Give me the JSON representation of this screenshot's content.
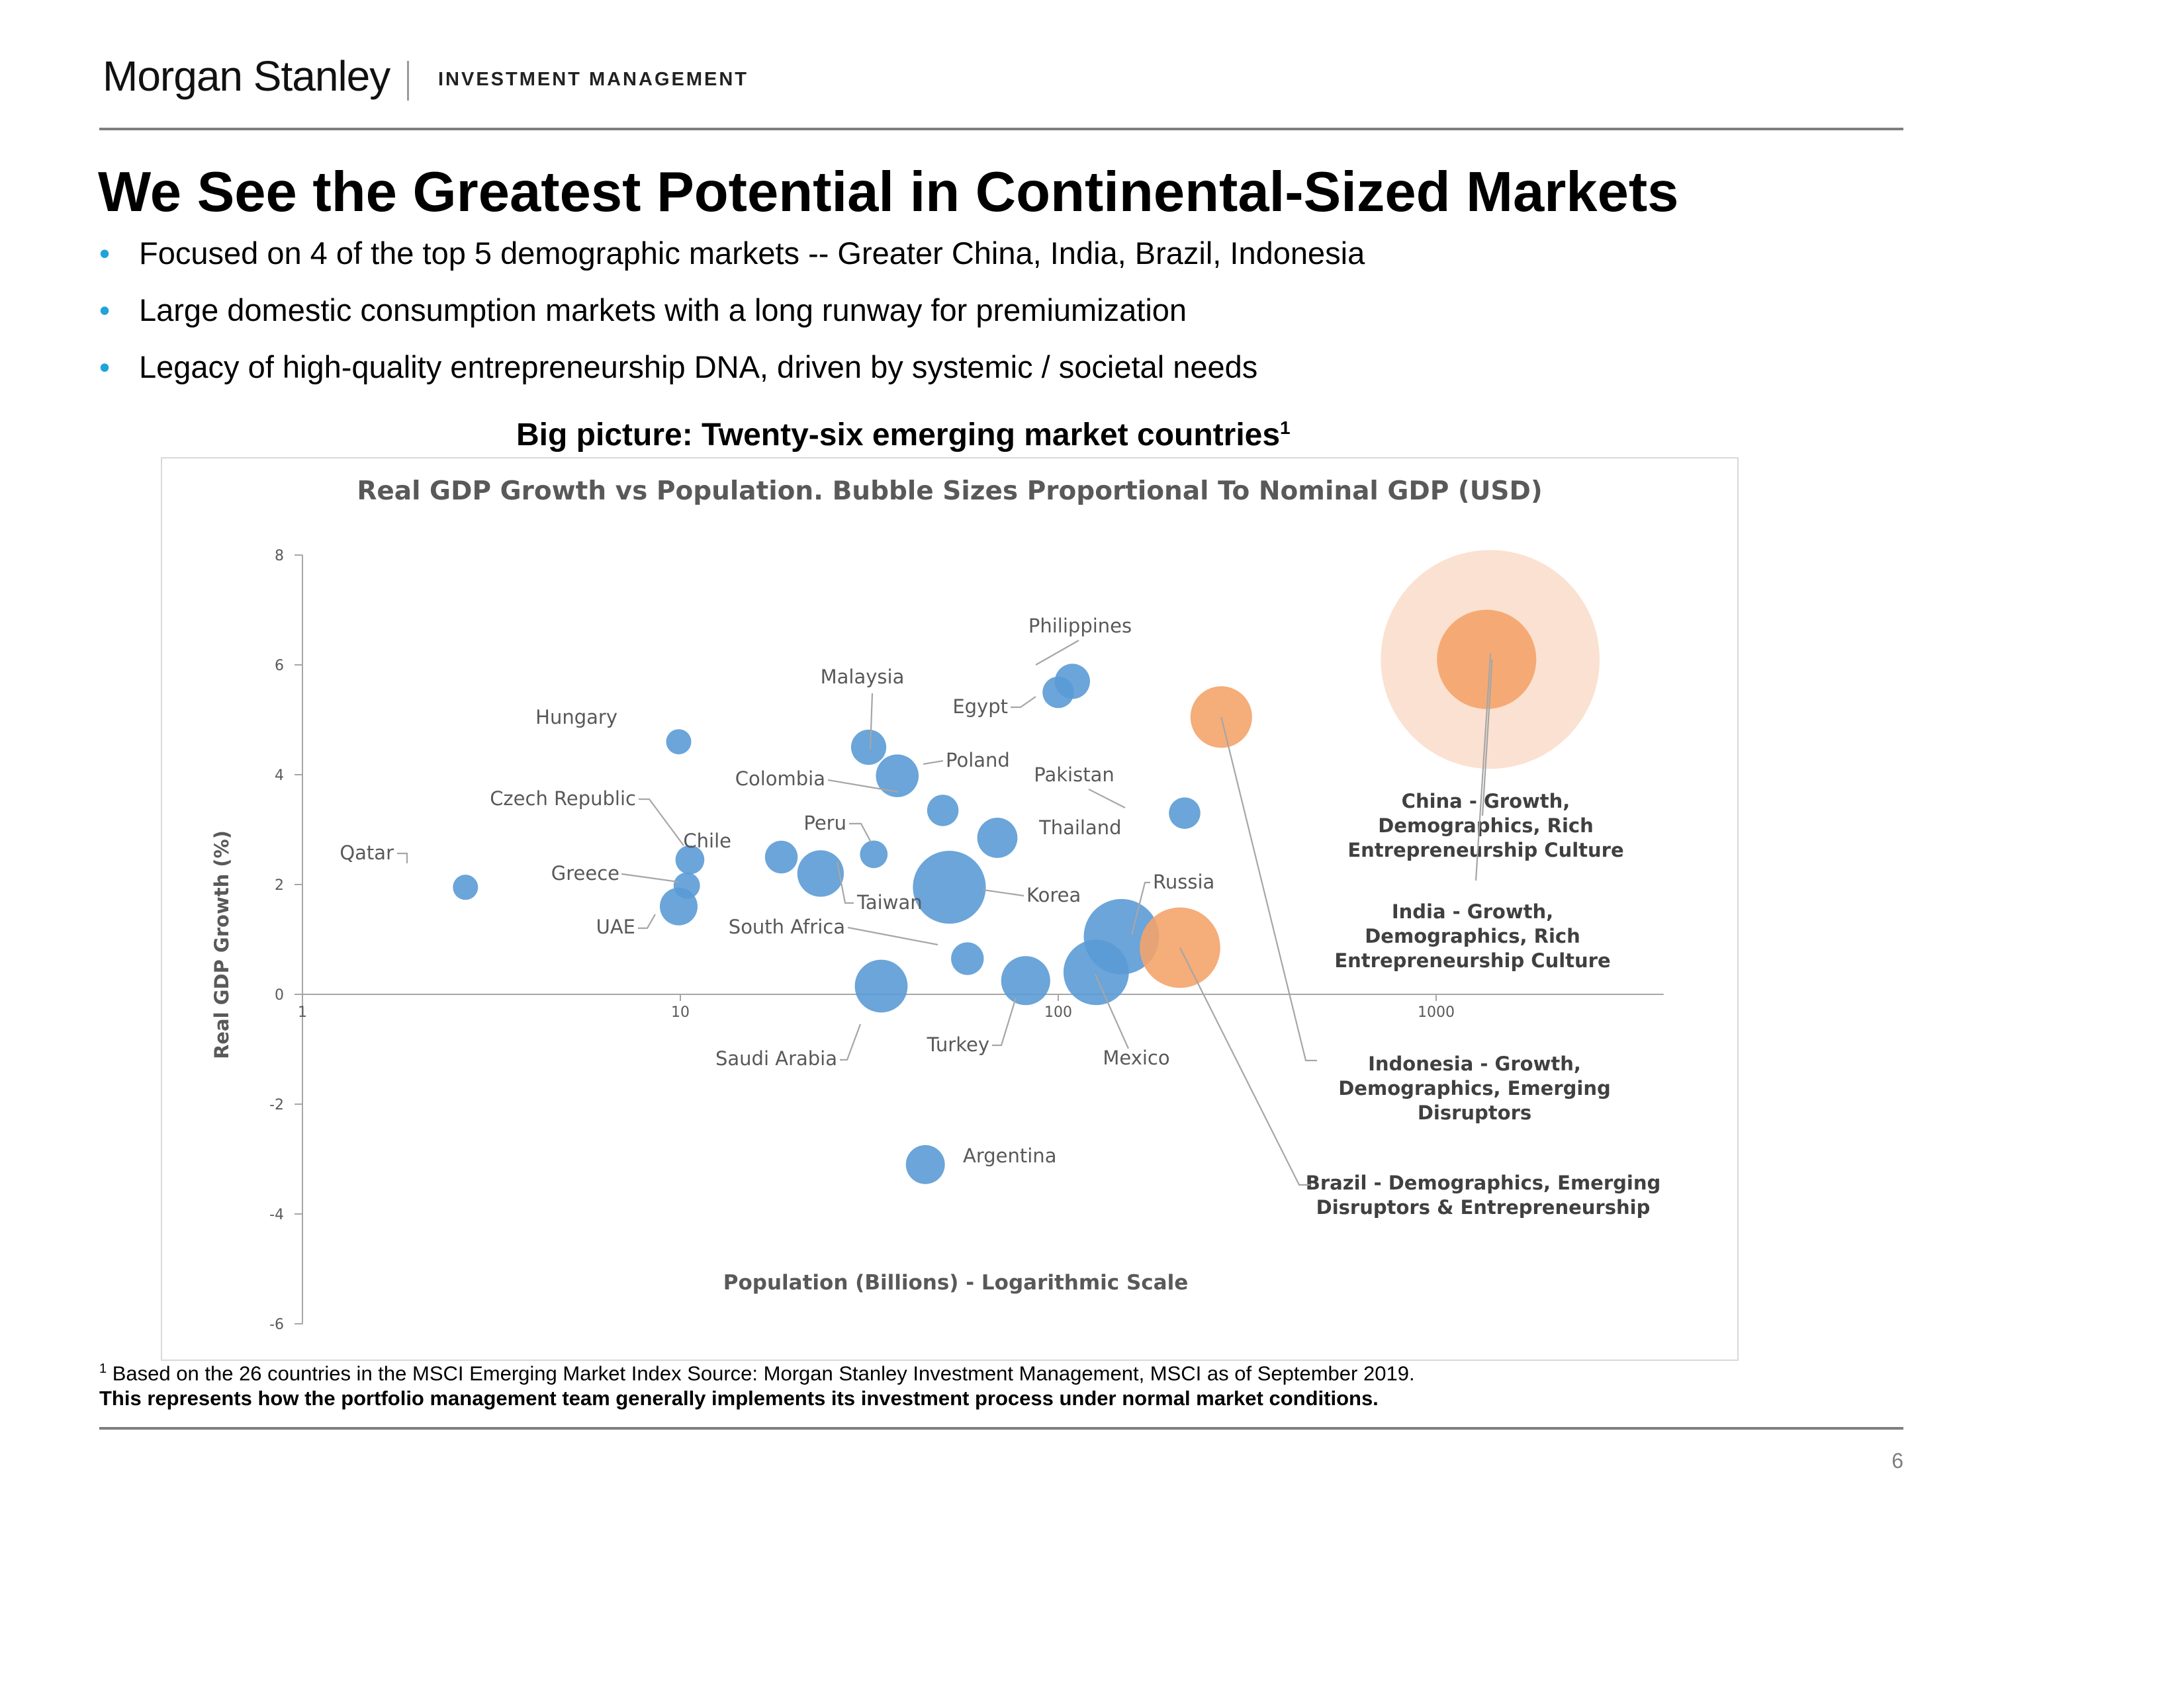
{
  "header": {
    "brand": "Morgan Stanley",
    "division": "INVESTMENT MANAGEMENT"
  },
  "title": "We See the Greatest Potential in Continental-Sized Markets",
  "bullets": [
    "Focused on 4 of the top 5 demographic markets -- Greater China, India, Brazil, Indonesia",
    "Large domestic consumption markets with a long runway for premiumization",
    "Legacy of high-quality entrepreneurship DNA, driven by systemic / societal needs"
  ],
  "chart_heading": {
    "text": "Big picture: Twenty-six emerging market countries",
    "footnote_marker": "1"
  },
  "chart_data": {
    "type": "scatter",
    "title": "Real GDP Growth vs Population.  Bubble Sizes Proportional  To Nominal GDP (USD)",
    "xlabel": "Population (Billions) - Logarithmic Scale",
    "ylabel": "Real GDP Growth (%)",
    "x_scale": "log",
    "xlim": [
      1,
      4000
    ],
    "ylim": [
      -6,
      8
    ],
    "x_ticks": [
      1,
      10,
      100,
      1000
    ],
    "y_ticks": [
      8,
      6,
      4,
      2,
      0,
      -2,
      -4,
      -6
    ],
    "grid": false,
    "colors": {
      "blue": "#5b9bd5",
      "orange": "#f4a46a",
      "china_halo": "#fbe1d1",
      "axis": "#a6a6a6",
      "leader": "#a6a6a6",
      "title": "#595959"
    },
    "points": [
      {
        "name": "Qatar",
        "x": 2.7,
        "y": 1.95,
        "r": 1.0,
        "color": "blue"
      },
      {
        "name": "Hungary",
        "x": 9.9,
        "y": 4.6,
        "r": 1.0,
        "color": "blue"
      },
      {
        "name": "Czech Republic",
        "x": 10.6,
        "y": 2.45,
        "r": 1.15,
        "color": "blue"
      },
      {
        "name": "Greece",
        "x": 10.4,
        "y": 1.98,
        "r": 1.05,
        "color": "blue"
      },
      {
        "name": "UAE",
        "x": 9.9,
        "y": 1.6,
        "r": 1.5,
        "color": "blue"
      },
      {
        "name": "Chile",
        "x": 18.5,
        "y": 2.5,
        "r": 1.3,
        "color": "blue"
      },
      {
        "name": "Taiwan",
        "x": 23.5,
        "y": 2.2,
        "r": 1.85,
        "color": "blue"
      },
      {
        "name": "Peru",
        "x": 32.5,
        "y": 2.55,
        "r": 1.1,
        "color": "blue"
      },
      {
        "name": "Malaysia",
        "x": 31.5,
        "y": 4.5,
        "r": 1.4,
        "color": "blue"
      },
      {
        "name": "Poland",
        "x": 37.5,
        "y": 3.98,
        "r": 1.7,
        "color": "blue"
      },
      {
        "name": "Saudi Arabia",
        "x": 34,
        "y": 0.15,
        "r": 2.1,
        "color": "blue"
      },
      {
        "name": "Colombia",
        "x": 49.5,
        "y": 3.35,
        "r": 1.25,
        "color": "blue"
      },
      {
        "name": "Argentina",
        "x": 44.5,
        "y": -3.1,
        "r": 1.55,
        "color": "blue"
      },
      {
        "name": "Korea",
        "x": 51.5,
        "y": 1.95,
        "r": 2.9,
        "color": "blue"
      },
      {
        "name": "South Africa",
        "x": 57.5,
        "y": 0.65,
        "r": 1.3,
        "color": "blue"
      },
      {
        "name": "Thailand",
        "x": 69,
        "y": 2.85,
        "r": 1.6,
        "color": "blue"
      },
      {
        "name": "Turkey",
        "x": 82,
        "y": 0.25,
        "r": 1.95,
        "color": "blue"
      },
      {
        "name": "Egypt",
        "x": 100,
        "y": 5.5,
        "r": 1.25,
        "color": "blue"
      },
      {
        "name": "Philippines",
        "x": 109,
        "y": 5.7,
        "r": 1.4,
        "color": "blue"
      },
      {
        "name": "Mexico",
        "x": 126,
        "y": 0.4,
        "r": 2.6,
        "color": "blue"
      },
      {
        "name": "Russia",
        "x": 147,
        "y": 1.05,
        "r": 3.0,
        "color": "blue"
      },
      {
        "name": "Pakistan",
        "x": 216,
        "y": 3.3,
        "r": 1.25,
        "color": "blue"
      },
      {
        "name": "Brazil",
        "x": 210,
        "y": 0.85,
        "r": 3.2,
        "color": "orange"
      },
      {
        "name": "Indonesia",
        "x": 270,
        "y": 5.05,
        "r": 2.45,
        "color": "orange"
      },
      {
        "name": "India",
        "x": 1360,
        "y": 6.1,
        "r": 3.95,
        "color": "orange"
      },
      {
        "name": "China",
        "x": 1390,
        "y": 6.1,
        "r": 8.7,
        "color": "china_halo"
      }
    ],
    "annotations": [
      "China - Growth, Demographics, Rich Entrepreneurship Culture",
      "India - Growth, Demographics, Rich Entrepreneurship Culture",
      "Indonesia - Growth, Demographics, Emerging Disruptors",
      "Brazil - Demographics, Emerging Disruptors & Entrepreneurship"
    ]
  },
  "footnote": {
    "marker": "1",
    "text": "Based on the 26 countries in the MSCI Emerging Market Index Source: Morgan Stanley Investment Management, MSCI as of September 2019."
  },
  "disclaimer": "This represents how the portfolio management team generally implements its investment process under normal market conditions.",
  "page_number": "6"
}
